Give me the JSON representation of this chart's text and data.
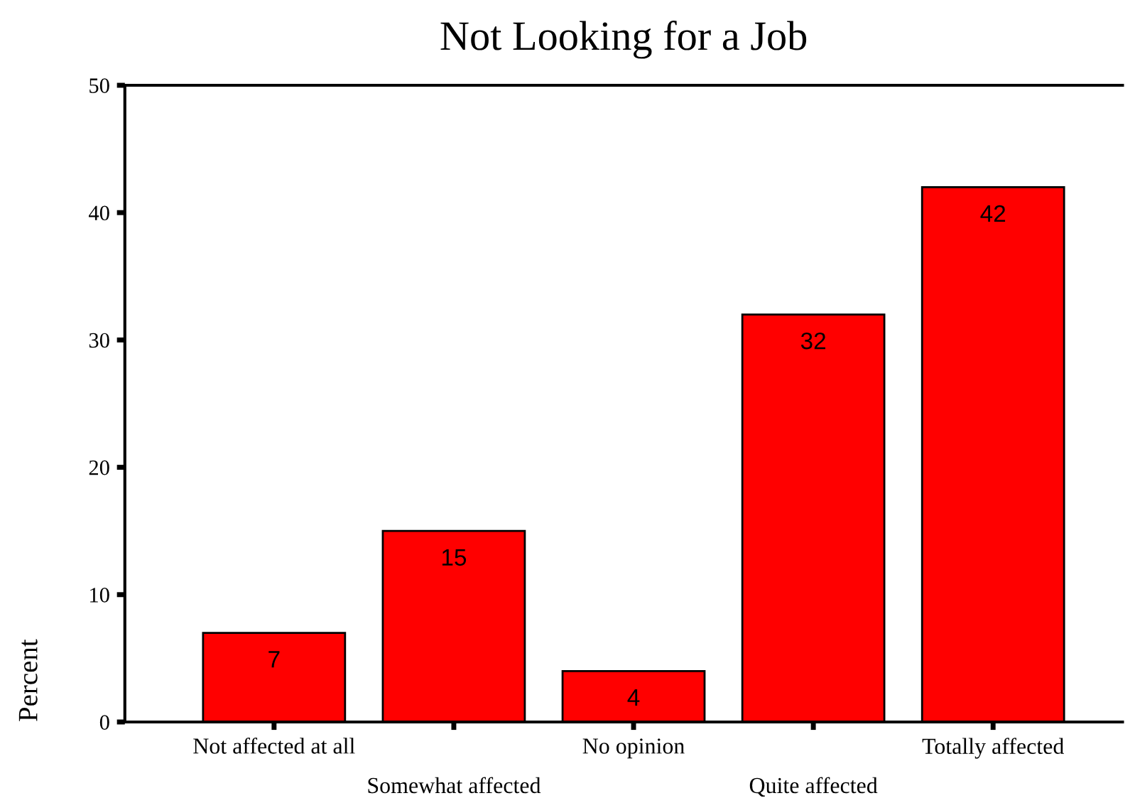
{
  "chart_data": {
    "type": "bar",
    "title": "Not Looking for a Job",
    "ylabel": "Percent",
    "categories": [
      "Not affected at all",
      "Somewhat affected",
      "No opinion",
      "Quite affected",
      "Totally affected"
    ],
    "values": [
      7,
      15,
      4,
      32,
      42
    ],
    "color": "#ff0000",
    "ylim": [
      0,
      50
    ],
    "yticks": [
      0,
      10,
      20,
      30,
      40,
      50
    ],
    "data_labels": true
  }
}
